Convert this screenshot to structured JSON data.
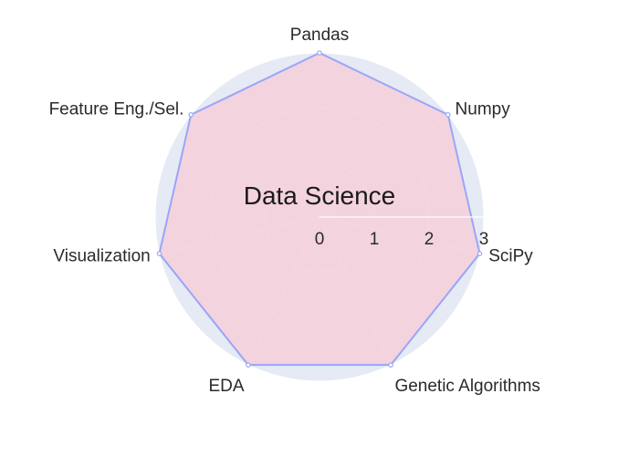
{
  "chart_data": {
    "type": "radar",
    "title": "Data Science",
    "categories": [
      "Pandas",
      "Numpy",
      "SciPy",
      "Genetic Algorithms",
      "EDA",
      "Visualization",
      "Feature Eng./Sel."
    ],
    "series": [
      {
        "values": [
          3,
          3,
          3,
          3,
          3,
          3,
          3
        ]
      }
    ],
    "radial_range": [
      0,
      3
    ],
    "radial_ticks": [
      0,
      1,
      2,
      3
    ],
    "grid": true,
    "colors": {
      "polar_background": "#e5eaf5",
      "grid": "#ffffff",
      "series_line": "#9aa5f8",
      "series_fill": "#f6cfd9"
    }
  }
}
